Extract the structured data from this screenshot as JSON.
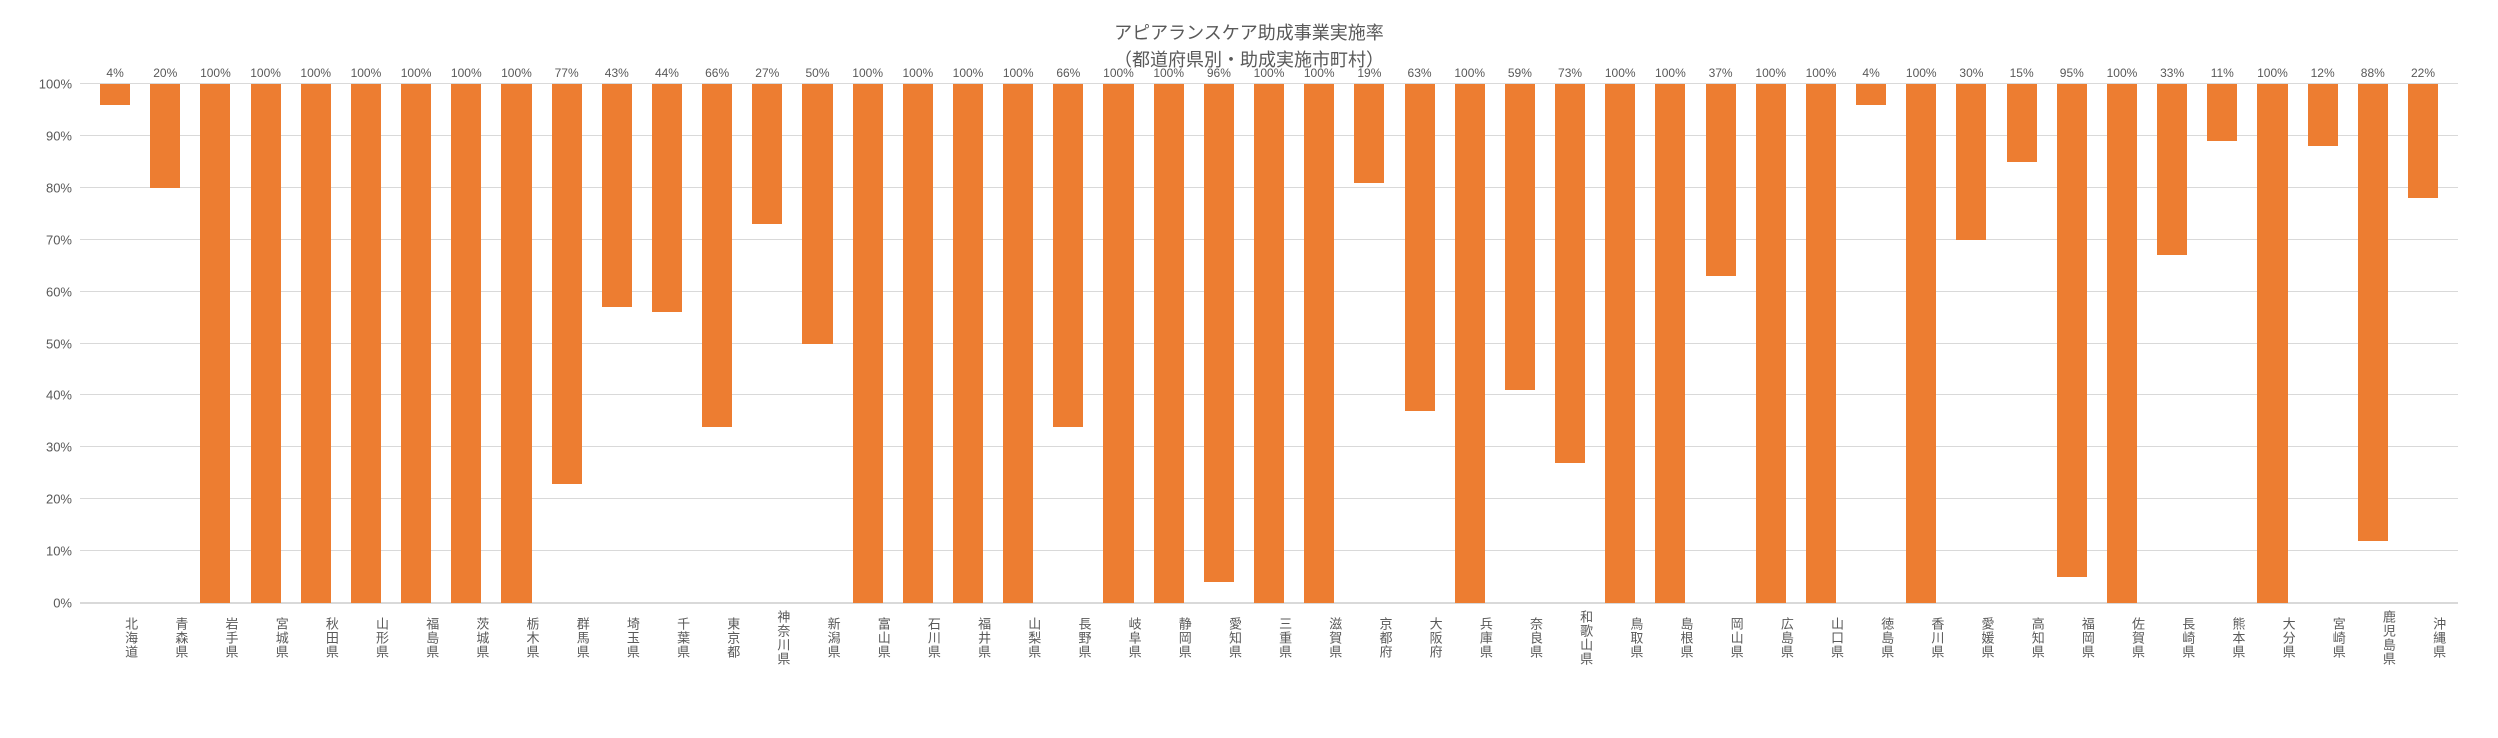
{
  "chart": {
    "type": "bar",
    "title_line1": "アピアランスケア助成事業実施率",
    "title_line2": "（都道府県別・助成実施市町村）",
    "title_fontsize": 18,
    "title_color": "#595959",
    "background_color": "#ffffff",
    "bar_color": "#ed7d31",
    "grid_color": "#d9d9d9",
    "text_color": "#595959",
    "label_fontsize": 13,
    "datalabel_fontsize": 12,
    "ylim": [
      0,
      100
    ],
    "ytick_step": 10,
    "y_suffix": "%",
    "bar_width": 0.6,
    "categories": [
      "北海道",
      "青森県",
      "岩手県",
      "宮城県",
      "秋田県",
      "山形県",
      "福島県",
      "茨城県",
      "栃木県",
      "群馬県",
      "埼玉県",
      "千葉県",
      "東京都",
      "神奈川県",
      "新潟県",
      "富山県",
      "石川県",
      "福井県",
      "山梨県",
      "長野県",
      "岐阜県",
      "静岡県",
      "愛知県",
      "三重県",
      "滋賀県",
      "京都府",
      "大阪府",
      "兵庫県",
      "奈良県",
      "和歌山県",
      "鳥取県",
      "島根県",
      "岡山県",
      "広島県",
      "山口県",
      "徳島県",
      "香川県",
      "愛媛県",
      "高知県",
      "福岡県",
      "佐賀県",
      "長崎県",
      "熊本県",
      "大分県",
      "宮崎県",
      "鹿児島県",
      "沖縄県"
    ],
    "values": [
      4,
      20,
      100,
      100,
      100,
      100,
      100,
      100,
      100,
      77,
      43,
      44,
      66,
      27,
      50,
      100,
      100,
      100,
      100,
      66,
      100,
      100,
      96,
      100,
      100,
      19,
      63,
      100,
      59,
      73,
      100,
      100,
      37,
      100,
      100,
      4,
      100,
      30,
      15,
      95,
      100,
      33,
      11,
      100,
      12,
      88,
      22
    ],
    "value_labels": [
      "4%",
      "20%",
      "100%",
      "100%",
      "100%",
      "100%",
      "100%",
      "100%",
      "100%",
      "77%",
      "43%",
      "44%",
      "66%",
      "27%",
      "50%",
      "100%",
      "100%",
      "100%",
      "100%",
      "66%",
      "100%",
      "100%",
      "96%",
      "100%",
      "100%",
      "19%",
      "63%",
      "100%",
      "59%",
      "73%",
      "100%",
      "100%",
      "37%",
      "100%",
      "100%",
      "4%",
      "100%",
      "30%",
      "15%",
      "95%",
      "100%",
      "33%",
      "11%",
      "100%",
      "12%",
      "88%",
      "22%"
    ],
    "y_ticks": [
      0,
      10,
      20,
      30,
      40,
      50,
      60,
      70,
      80,
      90,
      100
    ],
    "y_tick_labels": [
      "0%",
      "10%",
      "20%",
      "30%",
      "40%",
      "50%",
      "60%",
      "70%",
      "80%",
      "90%",
      "100%"
    ]
  }
}
